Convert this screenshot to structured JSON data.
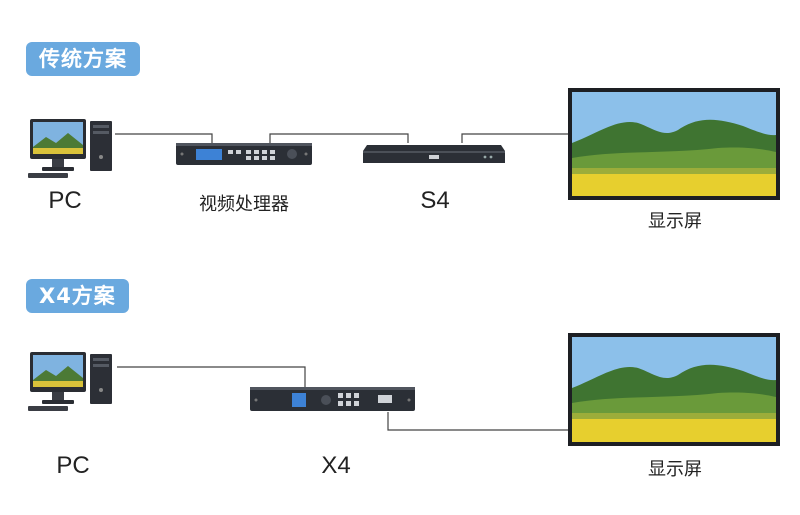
{
  "section_traditional": {
    "title": "传统方案"
  },
  "section_x4": {
    "title": "X4方案"
  },
  "traditional": {
    "pc_label": "PC",
    "processor_label": "视频处理器",
    "s4_label": "S4",
    "display_label": "显示屏"
  },
  "x4_scheme": {
    "pc_label": "PC",
    "x4_label": "X4",
    "display_label": "显示屏"
  },
  "colors": {
    "badge_bg": "#6aa9df",
    "device_body": "#2b2f36",
    "wire": "#444444"
  }
}
